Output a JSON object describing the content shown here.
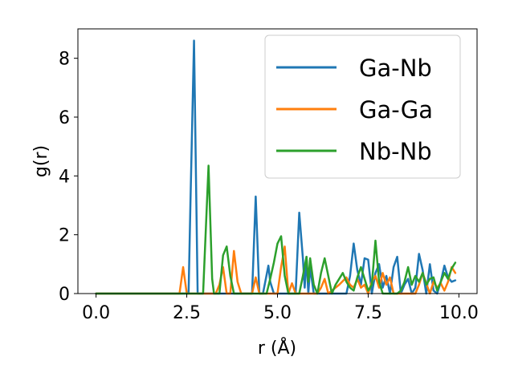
{
  "chart_data": {
    "type": "line",
    "title": "",
    "xlabel": "r (Å)",
    "ylabel": "g(r)",
    "xlim": [
      -0.5,
      10.5
    ],
    "ylim": [
      0,
      9
    ],
    "xticks": [
      0.0,
      2.5,
      5.0,
      7.5,
      10.0
    ],
    "xtick_labels": [
      "0.0",
      "2.5",
      "5.0",
      "7.5",
      "10.0"
    ],
    "yticks": [
      0,
      2,
      4,
      6,
      8
    ],
    "ytick_labels": [
      "0",
      "2",
      "4",
      "6",
      "8"
    ],
    "grid": false,
    "legend_position": "top-right",
    "series": [
      {
        "name": "Ga-Nb",
        "color": "#1f77b4",
        "x": [
          0.0,
          2.45,
          2.55,
          2.6,
          2.7,
          2.8,
          2.85,
          4.3,
          4.4,
          4.5,
          4.6,
          4.75,
          4.8,
          4.9,
          5.5,
          5.6,
          5.7,
          5.75,
          5.8,
          5.85,
          5.9,
          6.0,
          6.9,
          7.0,
          7.1,
          7.2,
          7.3,
          7.4,
          7.5,
          7.6,
          7.7,
          7.8,
          7.9,
          8.0,
          8.1,
          8.2,
          8.3,
          8.4,
          8.5,
          8.6,
          8.7,
          8.8,
          8.9,
          9.0,
          9.1,
          9.2,
          9.3,
          9.4,
          9.5,
          9.6,
          9.7,
          9.8,
          9.9
        ],
        "y": [
          0,
          0,
          0,
          3.0,
          8.6,
          0,
          0,
          0,
          3.3,
          0,
          0,
          0.95,
          0.4,
          0,
          0,
          2.75,
          1.2,
          0.2,
          1.25,
          0,
          0.9,
          0,
          0,
          0.6,
          1.7,
          0.8,
          0.3,
          1.2,
          1.15,
          0,
          0.7,
          1.0,
          0.2,
          0.6,
          0,
          0.9,
          1.25,
          0,
          0.3,
          0.5,
          0,
          0.2,
          1.35,
          0.8,
          0,
          1.0,
          0.1,
          0,
          0.4,
          0.95,
          0.55,
          0.4,
          0.45
        ]
      },
      {
        "name": "Ga-Ga",
        "color": "#ff7f0e",
        "x": [
          0.0,
          2.3,
          2.4,
          2.5,
          2.6,
          3.3,
          3.4,
          3.5,
          3.6,
          3.7,
          3.8,
          3.9,
          4.0,
          4.3,
          4.4,
          4.5,
          5.0,
          5.1,
          5.2,
          5.3,
          5.4,
          5.5,
          6.1,
          6.2,
          6.3,
          6.4,
          6.5,
          6.7,
          6.9,
          7.0,
          7.1,
          7.2,
          7.3,
          7.4,
          7.5,
          7.6,
          7.7,
          7.8,
          7.9,
          8.0,
          8.1,
          8.2,
          8.8,
          8.9,
          9.0,
          9.1,
          9.2,
          9.3,
          9.4,
          9.5,
          9.6,
          9.7,
          9.8,
          9.9
        ],
        "y": [
          0,
          0,
          0.9,
          0,
          0,
          0,
          0.3,
          0.9,
          0,
          0,
          1.45,
          0.4,
          0,
          0,
          0.55,
          0,
          0,
          0.9,
          1.6,
          0,
          0.35,
          0,
          0,
          0.2,
          0.5,
          0,
          0.1,
          0.3,
          0.55,
          0.3,
          0.2,
          0.5,
          0.2,
          0.3,
          0,
          0.4,
          0.6,
          0.2,
          0.7,
          0.3,
          0.55,
          0,
          0,
          0.3,
          0.7,
          0.35,
          0,
          0.4,
          0.2,
          0.35,
          0.1,
          0.4,
          0.9,
          0.7
        ]
      },
      {
        "name": "Nb-Nb",
        "color": "#2ca02c",
        "x": [
          0.0,
          2.95,
          3.1,
          3.2,
          3.25,
          3.4,
          3.5,
          3.6,
          3.7,
          3.8,
          3.9,
          4.6,
          4.7,
          4.8,
          4.9,
          5.0,
          5.1,
          5.2,
          5.3,
          5.6,
          5.7,
          5.8,
          5.85,
          5.9,
          6.0,
          6.1,
          6.2,
          6.3,
          6.5,
          6.6,
          6.7,
          6.8,
          6.9,
          7.0,
          7.1,
          7.2,
          7.3,
          7.4,
          7.5,
          7.6,
          7.7,
          7.8,
          7.9,
          8.0,
          8.3,
          8.4,
          8.5,
          8.6,
          8.7,
          8.8,
          8.9,
          9.0,
          9.1,
          9.2,
          9.3,
          9.4,
          9.5,
          9.6,
          9.7,
          9.8,
          9.9
        ],
        "y": [
          0,
          0,
          4.35,
          0.5,
          0,
          0,
          1.3,
          1.6,
          0.6,
          0,
          0,
          0,
          0,
          0.5,
          1.05,
          1.7,
          1.95,
          0.6,
          0,
          0,
          0.6,
          1.25,
          0.4,
          1.2,
          0.3,
          0,
          0.7,
          1.2,
          0,
          0.3,
          0.5,
          0.7,
          0.4,
          0.2,
          0.1,
          0.55,
          0.9,
          0.5,
          0.1,
          0.3,
          1.8,
          0.4,
          0,
          0,
          0,
          0.1,
          0.4,
          0.9,
          0.3,
          0.6,
          0.4,
          0.7,
          0.3,
          0.5,
          0.55,
          0.1,
          0.4,
          0.7,
          0.5,
          0.85,
          1.05
        ]
      }
    ]
  }
}
